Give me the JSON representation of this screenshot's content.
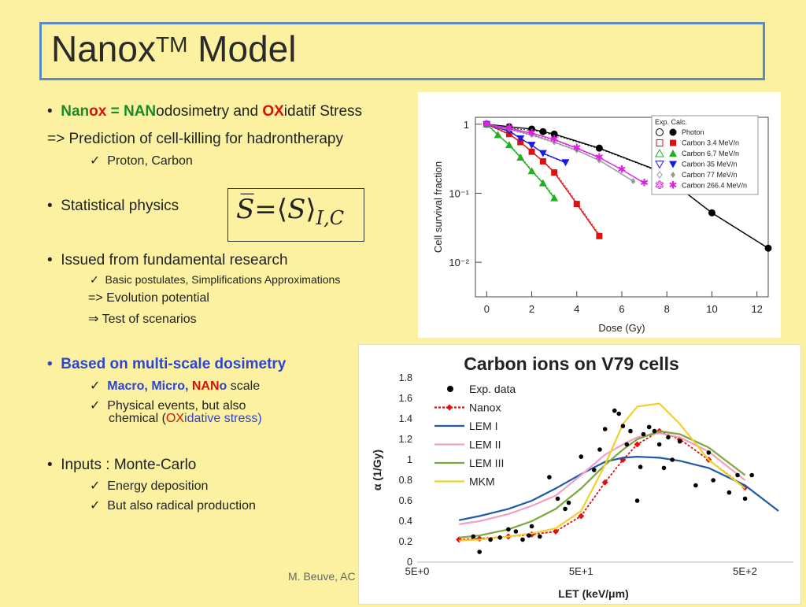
{
  "title": {
    "main": "Nanox",
    "sup": "TM",
    "rest": " Model"
  },
  "bullets": {
    "b1": {
      "p1": "Nan",
      "p2": "ox",
      "p3": " = ",
      "p4": "NAN",
      "p5": "odosimetry and ",
      "p6": "OX",
      "p7": "idatif Stress"
    },
    "b1_sub1": "=> Prediction of cell-killing for hadrontherapy",
    "b1_sub2": "Proton, Carbon",
    "b2": "Statistical physics",
    "b3": "Issued from fundamental research",
    "b3_sub1": "Basic postulates, Simplifications Approximations",
    "b3_sub2": "=> Evolution potential",
    "b3_sub3": "Test of scenarios",
    "b4": "Based on multi-scale dosimetry",
    "b4_sub1": {
      "p1": "Macro, Micro, ",
      "p2": "NAN",
      "p3": "o",
      "p4": " scale"
    },
    "b4_sub2a": "Physical events, but also",
    "b4_sub2b": {
      "p1": "chemical (",
      "p2": "OX",
      "p3": "idative stress)"
    },
    "b5": "Inputs :  Monte-Carlo",
    "b5_sub1": "Energy deposition",
    "b5_sub2": " But also radical production"
  },
  "formula": {
    "lhs": "S̅",
    "eq": "=⟨",
    "s": "S",
    "rangle": "⟩",
    "sub": "I,C"
  },
  "footer": "M. Beuve,  AC",
  "chart_data": [
    {
      "type": "scatter",
      "title": "",
      "xlabel": "Dose (Gy)",
      "ylabel": "Cell survival fraction",
      "xticks": [
        "0",
        "2",
        "4",
        "6",
        "8",
        "10",
        "12"
      ],
      "yticks": [
        "1",
        "10⁻¹",
        "10⁻²"
      ],
      "legend_title": "Exp. Calc.",
      "legend": [
        "Photon",
        "Carbon 3.4 MeV/n",
        "Carbon 6.7 MeV/n",
        "Carbon 35 MeV/n",
        "Carbon 77 MeV/n",
        "Carbon 266.4 MeV/n"
      ],
      "xlim": [
        -0.5,
        12.5
      ],
      "ylim_log10": [
        -2.5,
        0.1
      ],
      "series": [
        {
          "name": "Photon",
          "color": "#000000",
          "marker": "circle",
          "x": [
            0,
            1,
            2,
            2.5,
            3,
            5,
            7.5,
            10,
            12.5
          ],
          "y": [
            1,
            0.92,
            0.85,
            0.78,
            0.72,
            0.45,
            0.22,
            0.052,
            0.016
          ]
        },
        {
          "name": "Carbon 3.4 MeV/n",
          "color": "#e01010",
          "marker": "square",
          "x": [
            0,
            1,
            1.5,
            2,
            2.5,
            3,
            4,
            5
          ],
          "y": [
            1,
            0.72,
            0.55,
            0.4,
            0.29,
            0.2,
            0.07,
            0.024
          ]
        },
        {
          "name": "Carbon 6.7 MeV/n",
          "color": "#20b020",
          "marker": "triangle",
          "x": [
            0,
            0.5,
            1,
            1.5,
            2,
            2.5,
            3
          ],
          "y": [
            1,
            0.7,
            0.5,
            0.33,
            0.21,
            0.14,
            0.085
          ]
        },
        {
          "name": "Carbon 35 MeV/n",
          "color": "#1a1ae0",
          "marker": "tri-down",
          "x": [
            0,
            1,
            1.5,
            2,
            2.5,
            3.5
          ],
          "y": [
            1,
            0.8,
            0.62,
            0.5,
            0.38,
            0.28
          ]
        },
        {
          "name": "Carbon 77 MeV/n",
          "color": "#9a9a9a",
          "marker": "diamond",
          "x": [
            0,
            1,
            2,
            3,
            4,
            5,
            6.5
          ],
          "y": [
            1,
            0.85,
            0.7,
            0.55,
            0.42,
            0.3,
            0.15
          ]
        },
        {
          "name": "Carbon 266.4 MeV/n",
          "color": "#e020e0",
          "marker": "star",
          "x": [
            0,
            1,
            2,
            3,
            4,
            5,
            6,
            7
          ],
          "y": [
            1,
            0.88,
            0.74,
            0.6,
            0.45,
            0.33,
            0.22,
            0.14
          ]
        }
      ]
    },
    {
      "type": "line",
      "title": "Carbon ions on V79 cells",
      "xlabel": "LET (keV/μm)",
      "ylabel": "α (1/Gy)",
      "xtick_labels": [
        "5E+0",
        "5E+1",
        "5E+2"
      ],
      "xlim_log10": [
        0.699,
        2.85
      ],
      "ylim": [
        0,
        1.8
      ],
      "yticks": [
        "0",
        "0.2",
        "0.4",
        "0.6",
        "0.8",
        "1",
        "1.2",
        "1.4",
        "1.6",
        "1.8"
      ],
      "legend": [
        "Exp. data",
        "Nanox",
        "LEM I",
        "LEM II",
        "LEM III",
        "MKM"
      ],
      "series": [
        {
          "name": "Nanox",
          "color": "#e01010",
          "dashed": true,
          "x": [
            9,
            12,
            18,
            25,
            35,
            50,
            70,
            90,
            110,
            150,
            200,
            300,
            500
          ],
          "y": [
            0.22,
            0.23,
            0.25,
            0.27,
            0.3,
            0.45,
            0.78,
            1.0,
            1.15,
            1.28,
            1.2,
            1.0,
            0.73
          ]
        },
        {
          "name": "LEM I",
          "color": "#1f5aa8",
          "x": [
            9,
            12,
            18,
            25,
            35,
            50,
            70,
            90,
            110,
            150,
            200,
            300,
            500,
            800
          ],
          "y": [
            0.41,
            0.45,
            0.52,
            0.6,
            0.72,
            0.86,
            0.98,
            1.02,
            1.03,
            1.02,
            0.99,
            0.92,
            0.75,
            0.5
          ]
        },
        {
          "name": "LEM II",
          "color": "#f0a0c8",
          "x": [
            9,
            12,
            18,
            25,
            35,
            50,
            70,
            90,
            110,
            150,
            200,
            300,
            500
          ],
          "y": [
            0.37,
            0.4,
            0.47,
            0.55,
            0.65,
            0.85,
            1.05,
            1.15,
            1.22,
            1.26,
            1.22,
            1.08,
            0.8
          ]
        },
        {
          "name": "LEM III",
          "color": "#7aa83a",
          "x": [
            9,
            12,
            18,
            25,
            35,
            50,
            70,
            90,
            110,
            150,
            200,
            300,
            500
          ],
          "y": [
            0.24,
            0.26,
            0.32,
            0.4,
            0.52,
            0.72,
            0.95,
            1.1,
            1.2,
            1.28,
            1.25,
            1.12,
            0.85
          ]
        },
        {
          "name": "MKM",
          "color": "#f0d030",
          "x": [
            9,
            12,
            18,
            25,
            35,
            50,
            70,
            90,
            110,
            150,
            200,
            300,
            500
          ],
          "y": [
            0.21,
            0.22,
            0.25,
            0.28,
            0.33,
            0.5,
            0.95,
            1.35,
            1.52,
            1.55,
            1.35,
            1.0,
            0.72
          ]
        },
        {
          "name": "Exp. data",
          "color": "#000000",
          "marker": "dot",
          "x": [
            11,
            12,
            14,
            16,
            18,
            20,
            22,
            24,
            25,
            28,
            32,
            36,
            40,
            42,
            50,
            60,
            65,
            70,
            80,
            85,
            90,
            95,
            100,
            110,
            115,
            120,
            130,
            140,
            150,
            160,
            170,
            180,
            200,
            250,
            300,
            320,
            400,
            450,
            500,
            550
          ],
          "y": [
            0.25,
            0.1,
            0.22,
            0.24,
            0.32,
            0.3,
            0.22,
            0.26,
            0.35,
            0.25,
            0.83,
            0.62,
            0.52,
            0.58,
            1.03,
            0.9,
            1.1,
            1.3,
            1.48,
            1.45,
            1.33,
            1.15,
            1.28,
            0.6,
            0.93,
            1.25,
            1.32,
            1.28,
            1.15,
            0.92,
            1.22,
            1.0,
            1.18,
            0.75,
            1.07,
            0.8,
            0.68,
            0.85,
            0.62,
            0.85
          ]
        }
      ]
    }
  ]
}
